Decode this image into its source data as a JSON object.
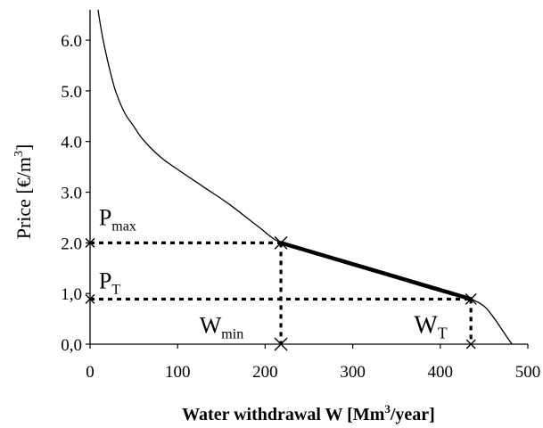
{
  "chart_data": {
    "type": "line",
    "xlabel": {
      "main": "Water withdrawal W [Mm",
      "sup": "3",
      "post": "/year]"
    },
    "ylabel": {
      "main": "Price [€/m",
      "sup": "3",
      "post": "]"
    },
    "xlim": [
      0,
      500
    ],
    "ylim": [
      0,
      6.6
    ],
    "x_ticks": [
      {
        "value": 0,
        "label": "0"
      },
      {
        "value": 100,
        "label": "100"
      },
      {
        "value": 200,
        "label": "200"
      },
      {
        "value": 300,
        "label": "300"
      },
      {
        "value": 400,
        "label": "400"
      },
      {
        "value": 500,
        "label": "500"
      }
    ],
    "y_ticks": [
      {
        "value": 0,
        "label": "0,0"
      },
      {
        "value": 1,
        "label": "1,0"
      },
      {
        "value": 2,
        "label": "2.0"
      },
      {
        "value": 3,
        "label": "3.0"
      },
      {
        "value": 4,
        "label": "4.0"
      },
      {
        "value": 5,
        "label": "5.0"
      },
      {
        "value": 6,
        "label": "6.0"
      }
    ],
    "series": [
      {
        "role": "demand-curve",
        "x": [
          7,
          10,
          15,
          20,
          25,
          30,
          40,
          50,
          60,
          80,
          100,
          130,
          160,
          190,
          218,
          260,
          300,
          340,
          380,
          420,
          435,
          450,
          460,
          470,
          477,
          482
        ],
        "y": [
          6.9,
          6.5,
          6.0,
          5.6,
          5.25,
          4.95,
          4.55,
          4.3,
          4.05,
          3.7,
          3.45,
          3.1,
          2.75,
          2.35,
          2.0,
          1.78,
          1.57,
          1.36,
          1.14,
          0.95,
          0.89,
          0.75,
          0.55,
          0.3,
          0.12,
          0.0
        ]
      },
      {
        "role": "tariff-segment",
        "x": [
          218,
          435
        ],
        "y": [
          2.0,
          0.89
        ]
      }
    ],
    "reference_points": {
      "Wmin": 218,
      "WT": 435,
      "Pmax": 2.0,
      "PT": 0.89
    },
    "annotations": [
      {
        "base": "P",
        "sub": "max",
        "x": 10,
        "y": 2.35,
        "size": 26,
        "sub_size": 16
      },
      {
        "base": "P",
        "sub": "T",
        "x": 10,
        "y": 1.1,
        "size": 26,
        "sub_size": 16
      },
      {
        "base": "W",
        "sub": "min",
        "x": 125,
        "y": 0.22,
        "size": 26,
        "sub_size": 16
      },
      {
        "base": "W",
        "sub": "T",
        "x": 370,
        "y": 0.22,
        "size": 28,
        "sub_size": 18
      }
    ],
    "grid": false,
    "legend": "none"
  }
}
